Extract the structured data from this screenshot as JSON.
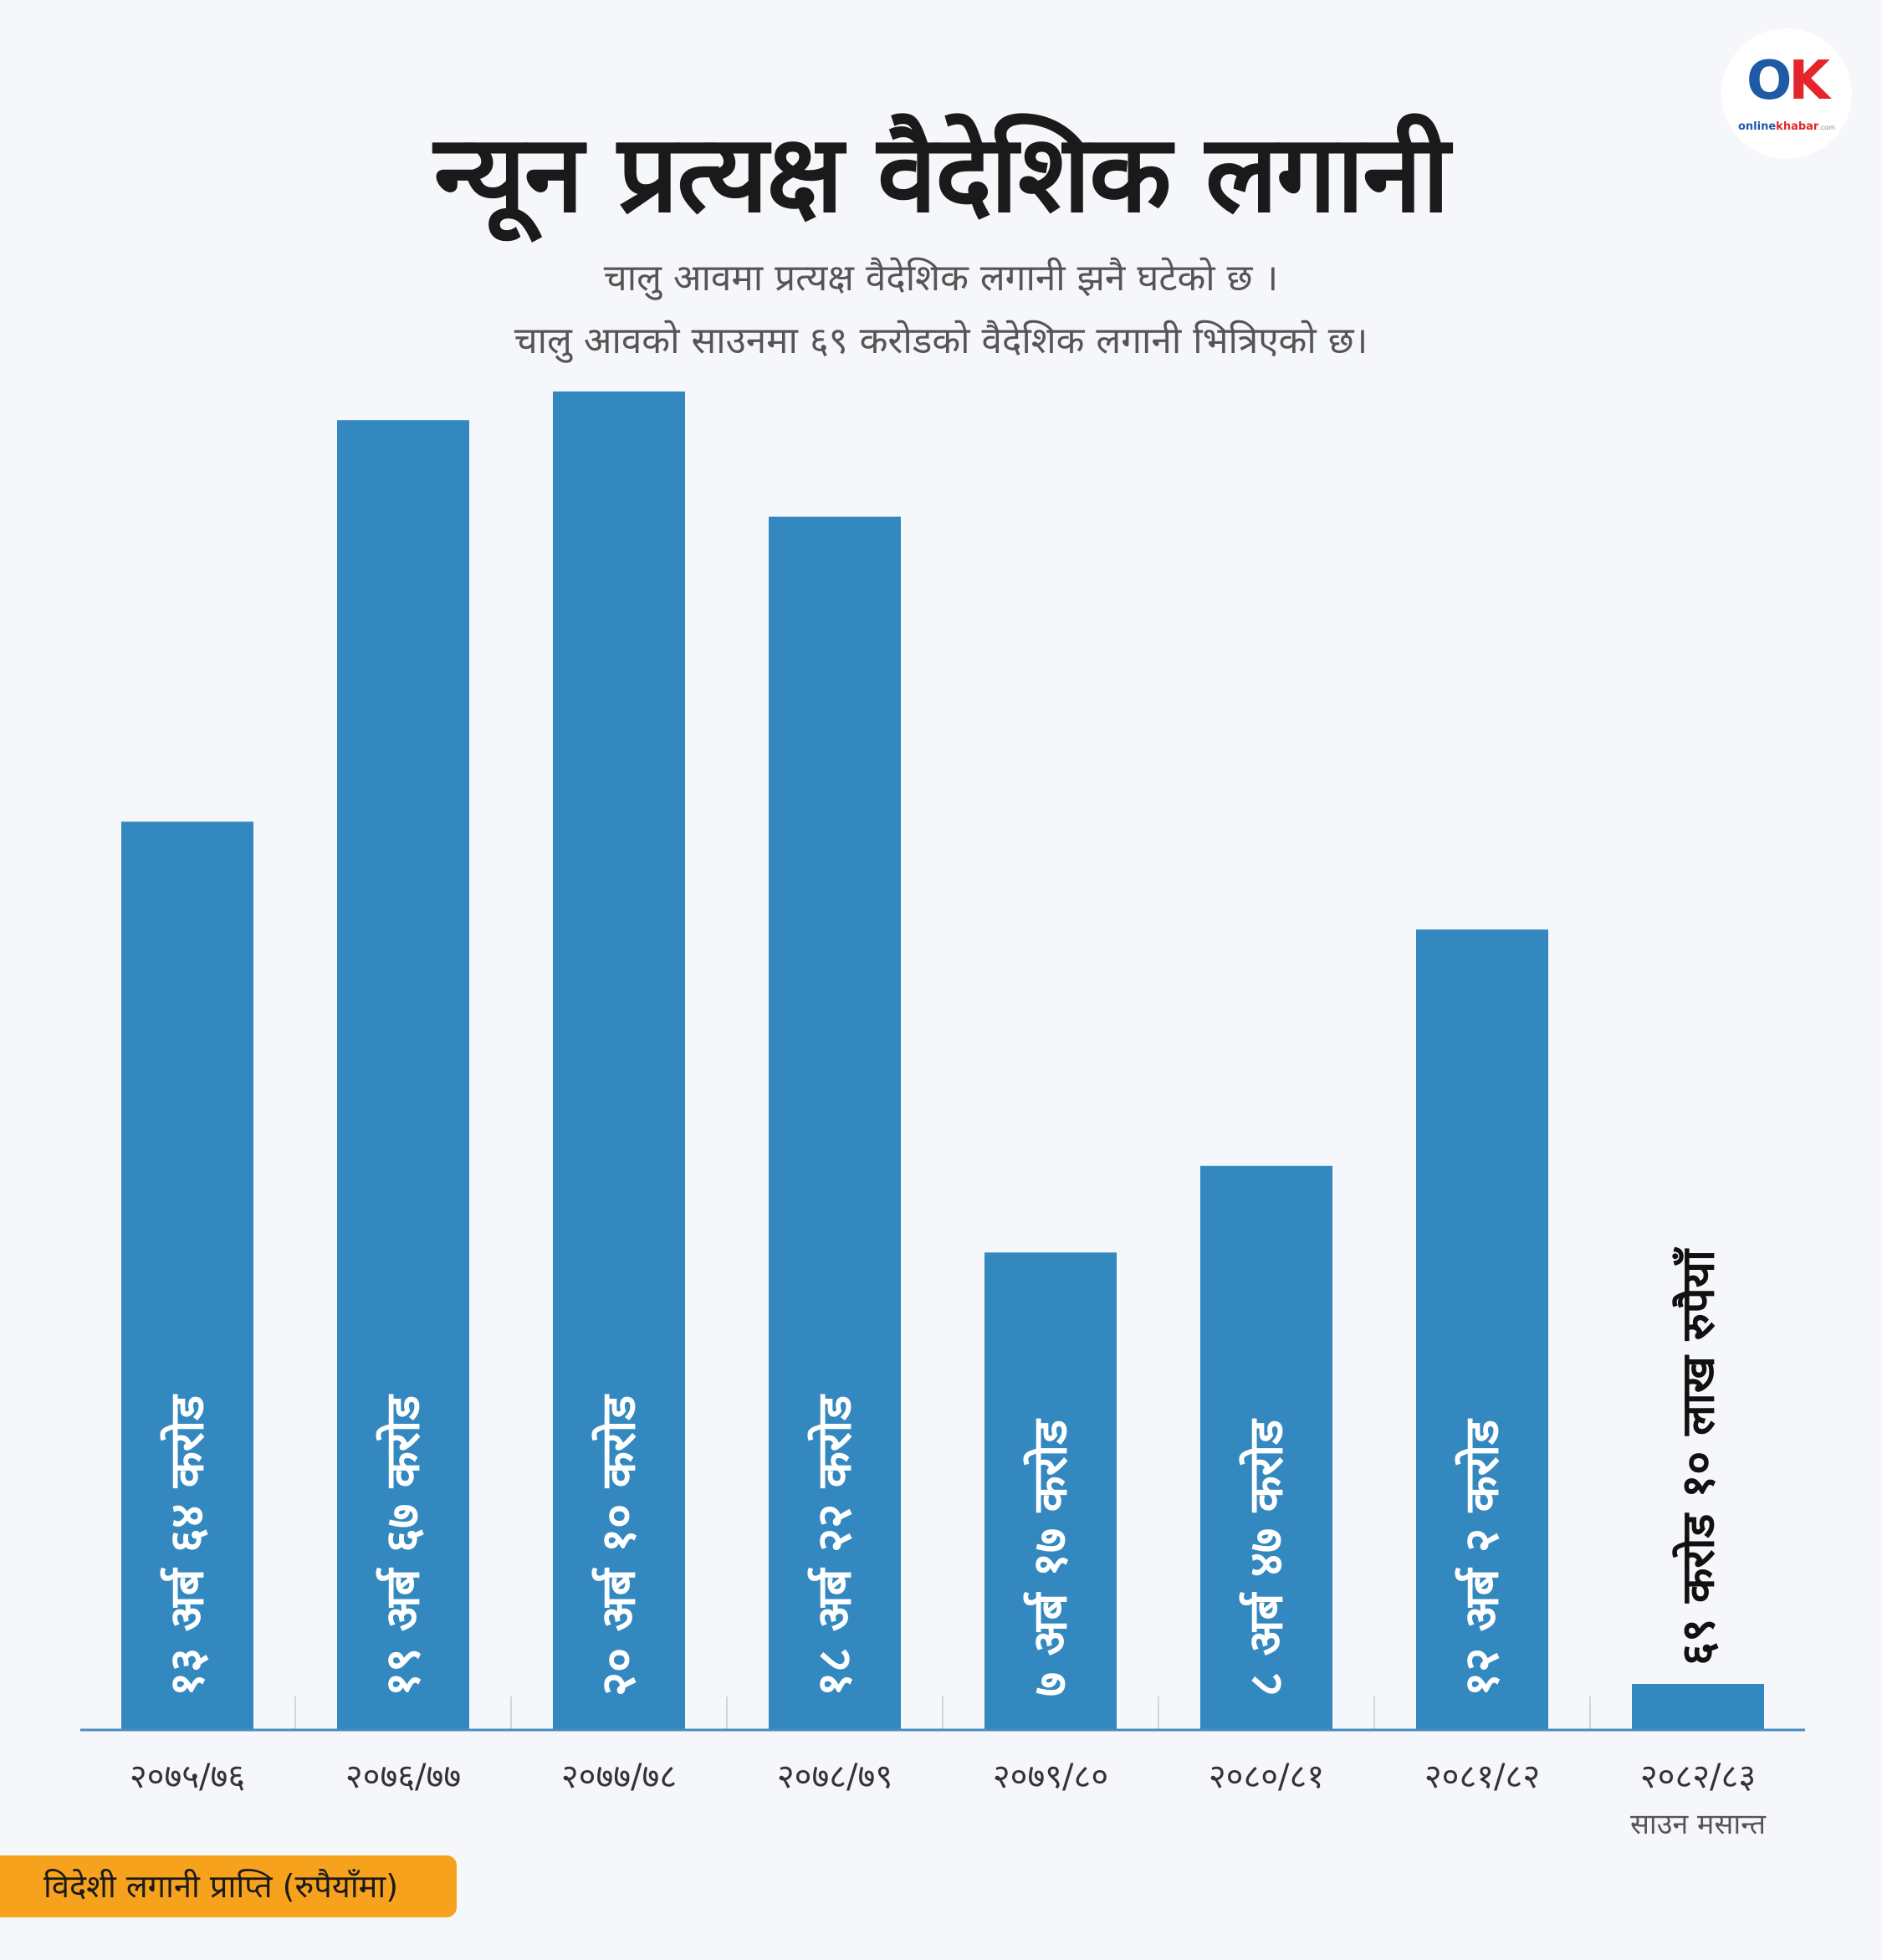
{
  "title": "न्यून प्रत्यक्ष वैदेशिक लगानी",
  "subtitle_lines": [
    "चालु आवमा प्रत्यक्ष वैदेशिक लगानी झनै घटेको छ ।",
    "चालु आवको साउनमा ६९ करोडको वैदेशिक लगानी भित्रिएको छ।"
  ],
  "logo": {
    "mark_o": "O",
    "mark_k": "K",
    "brand_online": "online",
    "brand_khabar": "khabar",
    "brand_tld": ".com"
  },
  "legend_badge": "विदेशी लगानी प्राप्ति (रुपैयाँमा)",
  "colors": {
    "bar": "#3388c0",
    "axis": "#4a8bbf",
    "badge": "#f7a21c",
    "bar_label": "#ffffff",
    "small_bar_label": "#111111"
  },
  "chart_data": {
    "type": "bar",
    "title": "न्यून प्रत्यक्ष वैदेशिक लगानी",
    "xlabel": "",
    "ylabel": "",
    "unit": "करोड रुपैयाँ",
    "categories": [
      "२०७५/७६",
      "२०७६/७७",
      "२०७७/७८",
      "२०७८/७९",
      "२०७९/८०",
      "२०८०/८१",
      "२०८१/८२",
      "२०८२/८३"
    ],
    "category_sublabels": [
      "",
      "",
      "",
      "",
      "",
      "",
      "",
      "साउन मसान्त"
    ],
    "values": [
      1364,
      1967,
      2010,
      1822,
      717,
      847,
      1202,
      69.1
    ],
    "data_labels": [
      "१३ अर्ब ६४ करोड",
      "१९ अर्ब ६७ करोड",
      "२० अर्ब १० करोड",
      "१८ अर्ब २२ करोड",
      "७ अर्ब १७ करोड",
      "८ अर्ब ४७ करोड",
      "१२ अर्ब २ करोड",
      "६९ करोड १० लाख रुपैयाँ"
    ],
    "ylim": [
      0,
      2010
    ],
    "grid": false,
    "legend": "none"
  }
}
